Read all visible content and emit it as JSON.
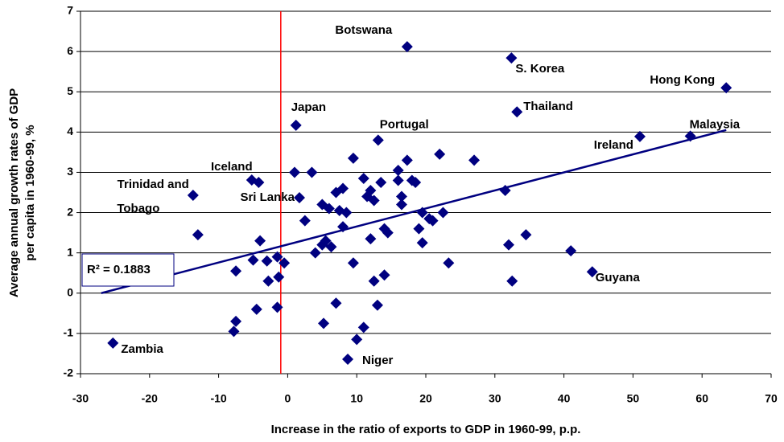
{
  "chart_data": {
    "type": "scatter",
    "xlabel": "Increase in the ratio of exports to GDP in 1960-99, p.p.",
    "ylabel": [
      "Average annual growth rates of GDP",
      "per capita in 1960-99, %"
    ],
    "xlim": [
      -30,
      70
    ],
    "xticks": [
      -30,
      -20,
      -10,
      0,
      10,
      20,
      30,
      40,
      50,
      60,
      70
    ],
    "ylim": [
      -2,
      7
    ],
    "yticks": [
      -2,
      -1,
      0,
      1,
      2,
      3,
      4,
      5,
      6,
      7
    ],
    "grid": true,
    "color": "#000080",
    "vline": {
      "x": -1,
      "color": "#ff0000"
    },
    "trendline": {
      "x": [
        -27,
        63.5
      ],
      "y": [
        0.0,
        4.05
      ],
      "color": "#000080"
    },
    "annotation": "R² = 0.1883",
    "series": [
      {
        "x": [
          17.3,
          32.4,
          63.5,
          33.2,
          1.2,
          58.3,
          51,
          13.1,
          -13.7,
          -5.2,
          1.7,
          -25.3,
          8.7,
          44.1,
          -13,
          -4.2,
          -4,
          -5,
          -7.5,
          -3,
          -2.8,
          -1.5,
          -1.3,
          -0.5,
          -1.5,
          -4.5,
          -7.5,
          -7.8,
          1,
          3.5,
          2.5,
          4,
          5,
          5,
          6,
          5.5,
          6.3,
          7,
          7.5,
          8,
          8.5,
          8,
          7,
          5.2,
          9.5,
          9.5,
          10,
          11,
          11,
          11.5,
          12,
          12.5,
          12,
          12.5,
          13,
          13.5,
          14,
          14,
          14.5,
          16,
          16,
          16.5,
          16.5,
          17.3,
          18,
          18.5,
          19,
          19.5,
          19.5,
          20.5,
          21,
          22,
          22.5,
          23.3,
          27,
          31.5,
          32,
          32.5,
          34.5,
          41
        ],
        "values": [
          6.12,
          5.84,
          5.1,
          4.5,
          4.17,
          3.9,
          3.89,
          3.8,
          2.43,
          2.81,
          2.37,
          -1.24,
          -1.64,
          0.53,
          1.45,
          2.75,
          1.3,
          0.82,
          0.55,
          0.8,
          0.3,
          0.9,
          0.4,
          0.75,
          -0.35,
          -0.4,
          -0.7,
          -0.95,
          3.0,
          3.0,
          1.8,
          1.0,
          1.2,
          2.2,
          2.1,
          1.3,
          1.15,
          2.5,
          2.05,
          2.6,
          2.0,
          1.65,
          -0.25,
          -0.75,
          3.35,
          0.75,
          -1.15,
          -0.85,
          2.85,
          2.4,
          2.55,
          2.3,
          1.35,
          0.3,
          -0.3,
          2.75,
          0.45,
          1.6,
          1.5,
          3.05,
          2.8,
          2.4,
          2.2,
          3.3,
          2.8,
          2.75,
          1.6,
          1.25,
          2.0,
          1.85,
          1.8,
          3.45,
          2.0,
          0.75,
          3.3,
          2.55,
          1.2,
          0.3,
          1.45,
          1.05
        ],
        "point_labels": [
          "Botswana",
          "S. Korea",
          "Hong Kong",
          "Thailand",
          "Japan",
          "Malaysia",
          "Ireland",
          "Portugal",
          [
            "Trinidad and",
            "Tobago"
          ],
          "Iceland",
          "Sri Lanka",
          "Zambia",
          "Niger",
          "Guyana",
          null,
          null,
          null,
          null,
          null,
          null,
          null,
          null,
          null,
          null,
          null,
          null,
          null,
          null,
          null,
          null,
          null,
          null,
          null,
          null,
          null,
          null,
          null,
          null,
          null,
          null,
          null,
          null,
          null,
          null,
          null,
          null,
          null,
          null,
          null,
          null,
          null,
          null,
          null,
          null,
          null,
          null,
          null,
          null,
          null,
          null,
          null,
          null,
          null,
          null,
          null,
          null,
          null,
          null,
          null,
          null,
          null,
          null,
          null,
          null,
          null,
          null,
          null,
          null,
          null,
          null
        ]
      }
    ]
  }
}
